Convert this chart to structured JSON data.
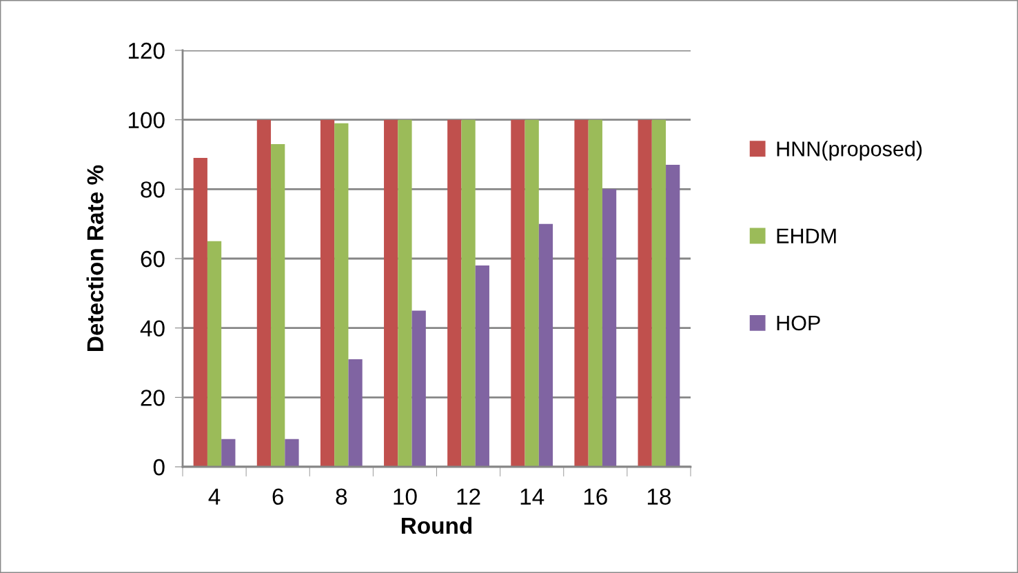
{
  "chart_data": {
    "type": "bar",
    "xlabel": "Round",
    "ylabel": "Detection Rate %",
    "categories": [
      "4",
      "6",
      "8",
      "10",
      "12",
      "14",
      "16",
      "18"
    ],
    "series": [
      {
        "name": "HNN(proposed)",
        "color": "#c0504d",
        "values": [
          89,
          100,
          100,
          100,
          100,
          100,
          100,
          100
        ]
      },
      {
        "name": "EHDM",
        "color": "#9bbb59",
        "values": [
          65,
          93,
          99,
          100,
          100,
          100,
          100,
          100
        ]
      },
      {
        "name": "HOP",
        "color": "#8064a2",
        "values": [
          8,
          8,
          31,
          45,
          58,
          70,
          80,
          87
        ]
      }
    ],
    "ylim": [
      0,
      120
    ],
    "yticks": [
      0,
      20,
      40,
      60,
      80,
      100,
      120
    ],
    "grid": "y",
    "legend": "right"
  }
}
